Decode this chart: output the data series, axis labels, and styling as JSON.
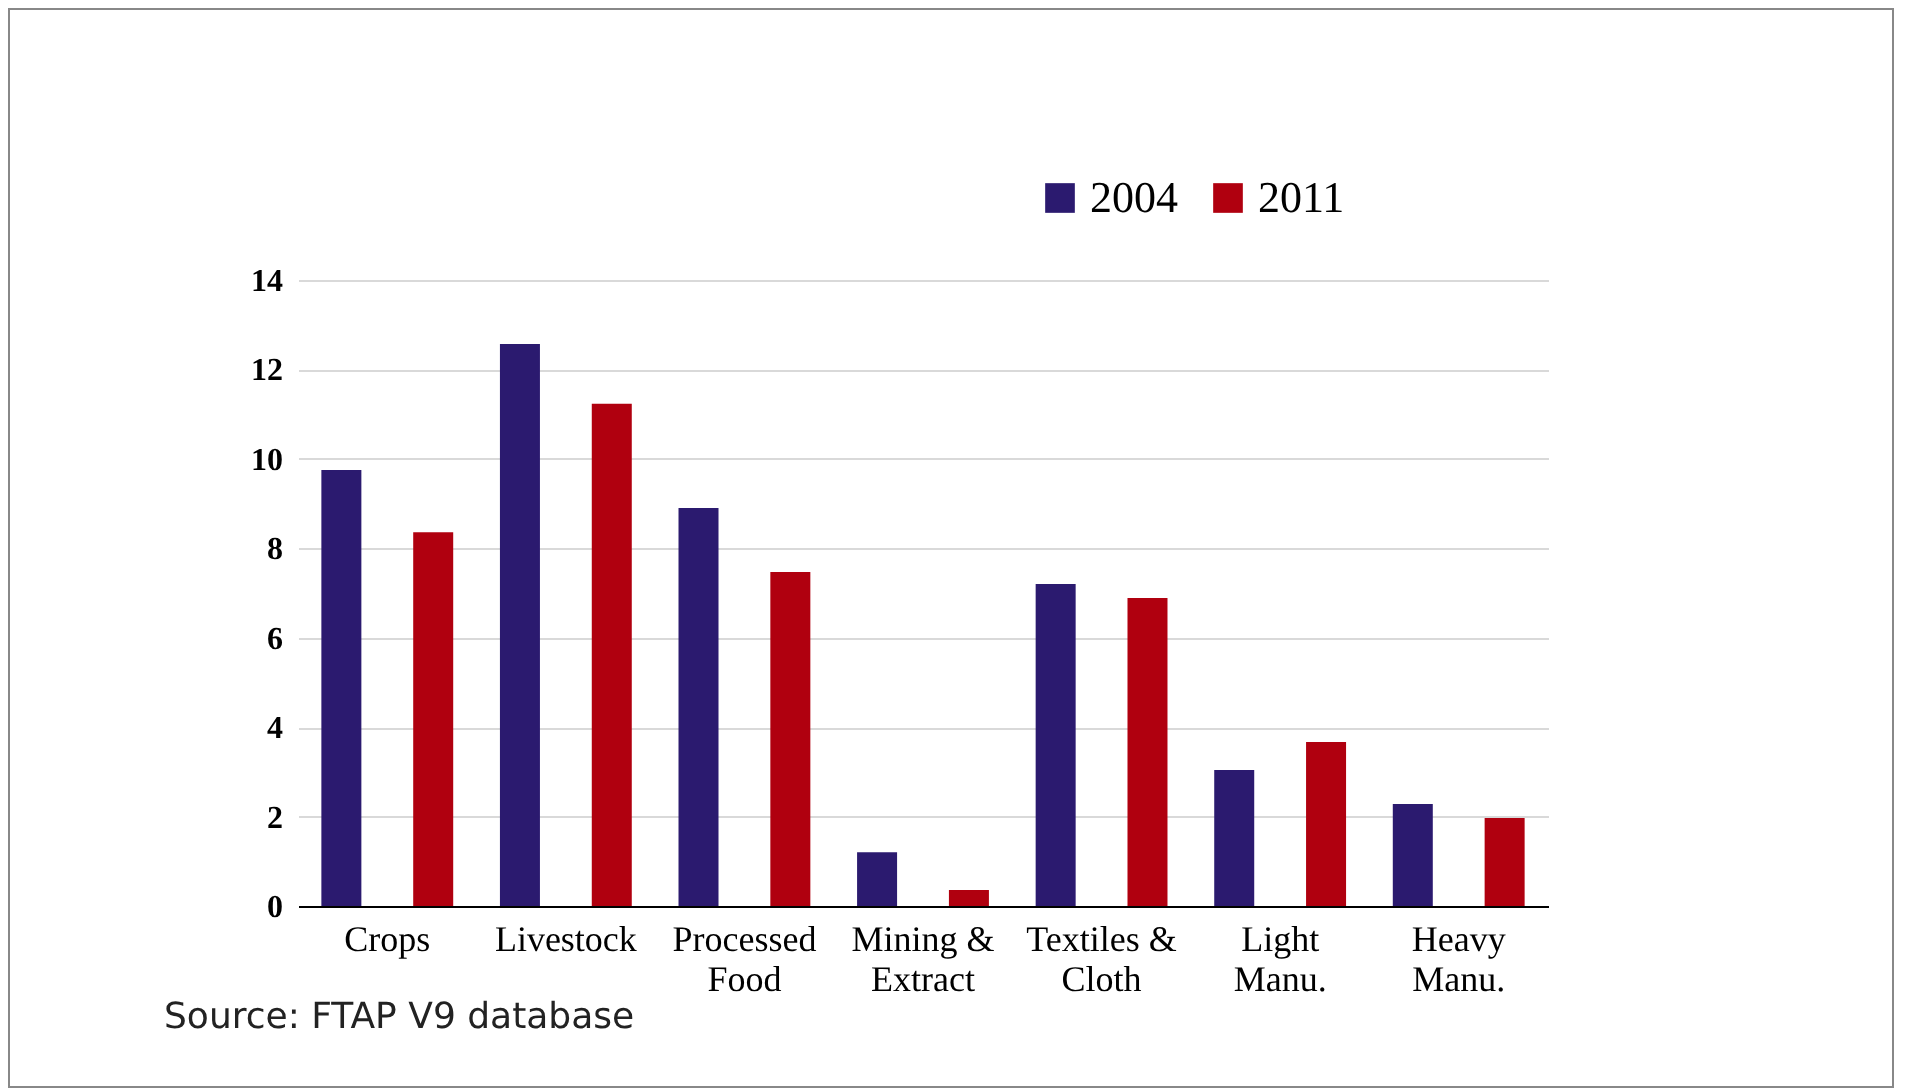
{
  "chart_data": {
    "type": "bar",
    "categories": [
      "Crops",
      "Livestock",
      "Processed Food",
      "Mining & Extract",
      "Textiles & Cloth",
      "Light Manu.",
      "Heavy Manu."
    ],
    "series": [
      {
        "name": "2004",
        "color": "#2b1a6f",
        "values": [
          9.75,
          12.57,
          8.9,
          1.2,
          7.2,
          3.04,
          2.28
        ]
      },
      {
        "name": "2011",
        "color": "#b0000f",
        "values": [
          8.36,
          11.23,
          7.47,
          0.36,
          6.89,
          3.67,
          1.97
        ]
      }
    ],
    "ylim": [
      0,
      14
    ],
    "yticks": [
      0,
      2,
      4,
      6,
      8,
      10,
      12,
      14
    ],
    "grid": "y",
    "legend": "top",
    "annotations": [
      "Source: FTAP V9 database"
    ]
  }
}
